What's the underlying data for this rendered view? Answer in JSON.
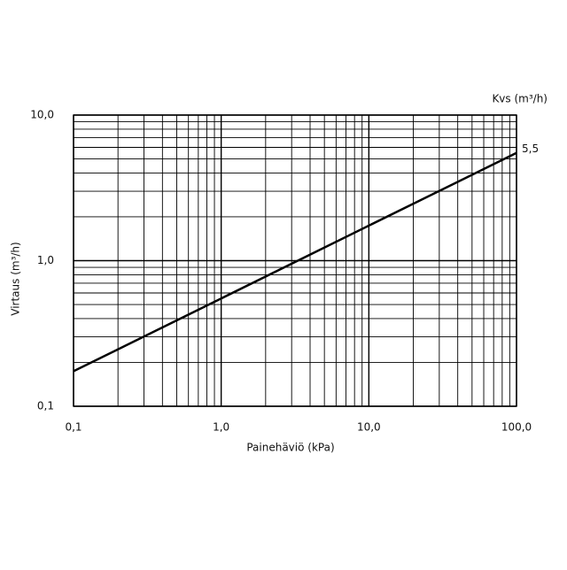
{
  "chart_data": {
    "type": "line",
    "x_label": "Painehäviö (kPa)",
    "y_label": "Virtaus (m³/h)",
    "annotation": "Kvs (m³/h)",
    "xscale": "log",
    "yscale": "log",
    "grid": true,
    "minor_grid": true,
    "xlim": [
      0.1,
      100
    ],
    "ylim": [
      0.1,
      10
    ],
    "xticks": [
      {
        "value": 0.1,
        "label": "0,1"
      },
      {
        "value": 1,
        "label": "1,0"
      },
      {
        "value": 10,
        "label": "10,0"
      },
      {
        "value": 100,
        "label": "100,0"
      }
    ],
    "yticks": [
      {
        "value": 0.1,
        "label": "0,1"
      },
      {
        "value": 1,
        "label": "1,0"
      },
      {
        "value": 10,
        "label": "10,0"
      }
    ],
    "x": [
      0.1,
      1,
      10,
      100
    ],
    "series": [
      {
        "name": "5,5",
        "color": "#000000",
        "values": [
          0.174,
          0.55,
          1.74,
          5.5
        ],
        "value_labels": [
          null,
          null,
          null,
          "5,5"
        ]
      }
    ]
  }
}
